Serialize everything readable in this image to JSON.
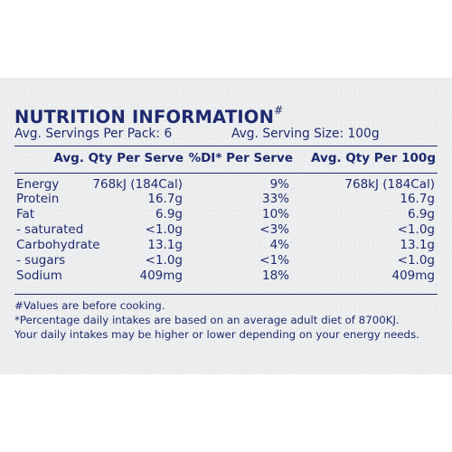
{
  "panel": {
    "title": "NUTRITION INFORMATION",
    "title_mark": "#",
    "servings_per_pack": "Avg. Servings Per Pack: 6",
    "serving_size": "Avg. Serving Size: 100g"
  },
  "table": {
    "headers": [
      "Avg. Qty Per Serve",
      "%DI* Per Serve",
      "Avg. Qty Per 100g"
    ],
    "rows": [
      {
        "label": "Energy",
        "per_serve": "768kJ (184Cal)",
        "di": "9%",
        "per_100g": "768kJ (184Cal)"
      },
      {
        "label": "Protein",
        "per_serve": "16.7g",
        "di": "33%",
        "per_100g": "16.7g"
      },
      {
        "label": "Fat",
        "per_serve": "6.9g",
        "di": "10%",
        "per_100g": "6.9g"
      },
      {
        "label": "- saturated",
        "per_serve": "<1.0g",
        "di": "<3%",
        "per_100g": "<1.0g"
      },
      {
        "label": "Carbohydrate",
        "per_serve": "13.1g",
        "di": "4%",
        "per_100g": "13.1g"
      },
      {
        "label": "- sugars",
        "per_serve": "<1.0g",
        "di": "<1%",
        "per_100g": "<1.0g"
      },
      {
        "label": "Sodium",
        "per_serve": "409mg",
        "di": "18%",
        "per_100g": "409mg"
      }
    ]
  },
  "footnotes": [
    "#Values are before cooking.",
    "*Percentage daily intakes are based on an average adult diet of 8700KJ.",
    "Your daily intakes may be higher or lower depending on your energy needs."
  ],
  "colors": {
    "ink": "#1e2a6e",
    "panel": "#eceeef"
  }
}
